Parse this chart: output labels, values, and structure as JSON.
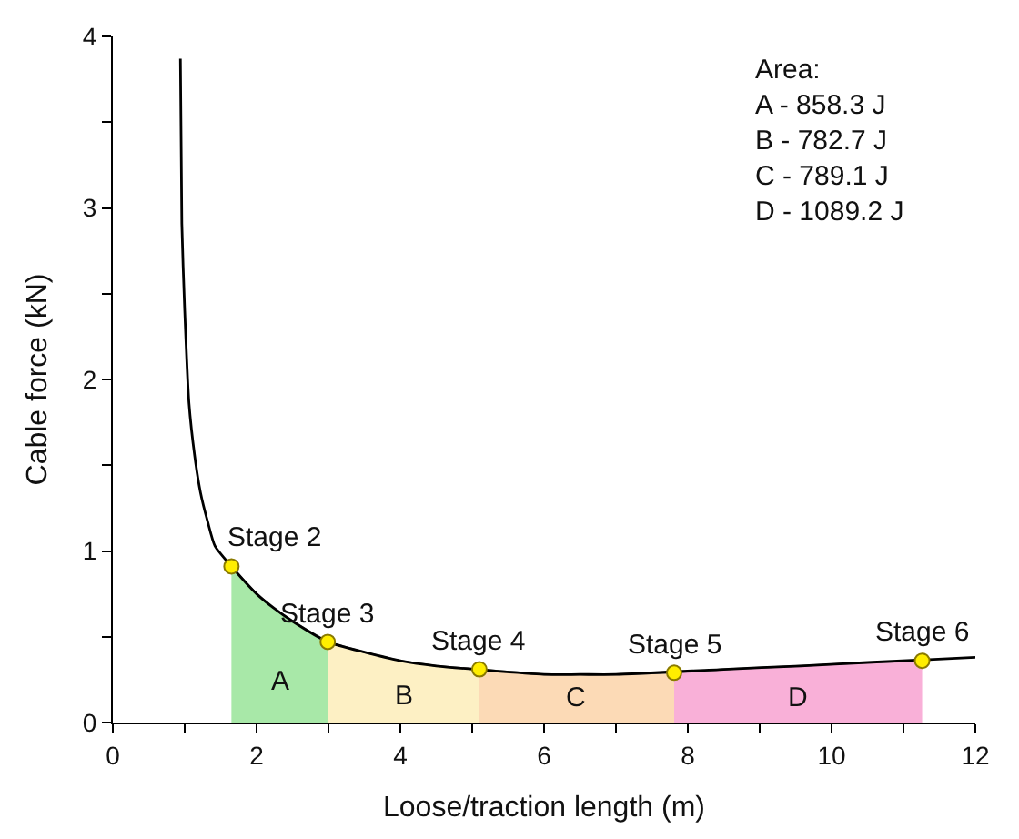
{
  "chart_data": {
    "type": "line",
    "xlabel": "Loose/traction length (m)",
    "ylabel": "Cable force (kN)",
    "xlim": [
      0,
      12
    ],
    "ylim": [
      0,
      4
    ],
    "xticks": [
      0,
      {
        "value": 1,
        "label": null
      },
      2,
      {
        "value": 3,
        "label": null
      },
      4,
      {
        "value": 5,
        "label": null
      },
      6,
      {
        "value": 7,
        "label": null
      },
      8,
      {
        "value": 9,
        "label": null
      },
      10,
      {
        "value": 11,
        "label": null
      },
      12
    ],
    "yticks": [
      0,
      {
        "value": 0.5,
        "label": null
      },
      1,
      {
        "value": 1.5,
        "label": null
      },
      2,
      {
        "value": 2.5,
        "label": null
      },
      3,
      {
        "value": 3.5,
        "label": null
      },
      4
    ],
    "legend": false,
    "series": [
      {
        "type": "area",
        "name": "A",
        "color": "#a8e8a8",
        "x": [
          1.65,
          2.0,
          2.23,
          2.5,
          2.99
        ],
        "values": [
          0.91,
          0.75,
          0.67,
          0.59,
          0.47
        ]
      },
      {
        "type": "area",
        "name": "B",
        "color": "#fdf0c4",
        "x": [
          2.99,
          3.5,
          4.0,
          4.5,
          5.1
        ],
        "values": [
          0.47,
          0.41,
          0.36,
          0.33,
          0.31
        ]
      },
      {
        "type": "area",
        "name": "C",
        "color": "#fcdab6",
        "x": [
          5.1,
          6.0,
          6.5,
          7.0,
          7.81
        ],
        "values": [
          0.31,
          0.28,
          0.28,
          0.28,
          0.29
        ]
      },
      {
        "type": "area",
        "name": "D",
        "color": "#f9b0d8",
        "x": [
          7.81,
          8.5,
          9.57,
          10.5,
          11.26
        ],
        "values": [
          0.29,
          0.31,
          0.33,
          0.35,
          0.36
        ]
      },
      {
        "color": "#000000",
        "marker": "none",
        "line_style": "solid",
        "x": [
          0.94,
          0.96,
          1.0,
          1.06,
          1.14,
          1.22,
          1.32,
          1.42,
          1.65,
          2.0,
          2.23,
          2.5,
          2.99,
          3.5,
          4.0,
          4.5,
          6.0,
          6.5,
          7.0,
          8.5,
          9.57,
          10.5,
          12
        ],
        "values": [
          3.87,
          2.91,
          2.4,
          1.86,
          1.55,
          1.34,
          1.17,
          1.03,
          0.91,
          0.75,
          0.67,
          0.59,
          0.47,
          0.41,
          0.36,
          0.33,
          0.28,
          0.28,
          0.28,
          0.31,
          0.33,
          0.35,
          0.38
        ]
      },
      {
        "type": "scatter",
        "color": "#ffee00",
        "marker": "circle",
        "x": [
          1.65,
          2.99,
          5.1,
          7.81,
          11.26
        ],
        "values": [
          0.91,
          0.47,
          0.31,
          0.29,
          0.36
        ]
      }
    ],
    "annotations": [
      {
        "text": "Stage 2",
        "x": 1.65,
        "y": 0.91
      },
      {
        "text": "Stage 3",
        "x": 2.99,
        "y": 0.47
      },
      {
        "text": "Stage 4",
        "x": 5.1,
        "y": 0.31
      },
      {
        "text": "Stage 5",
        "x": 7.81,
        "y": 0.29
      },
      {
        "text": "Stage 6",
        "x": 11.26,
        "y": 0.36
      },
      "Area:\nA - 858.3 J\nB - 782.7 J\nC - 789.1 J\nD - 1089.2 J"
    ]
  }
}
